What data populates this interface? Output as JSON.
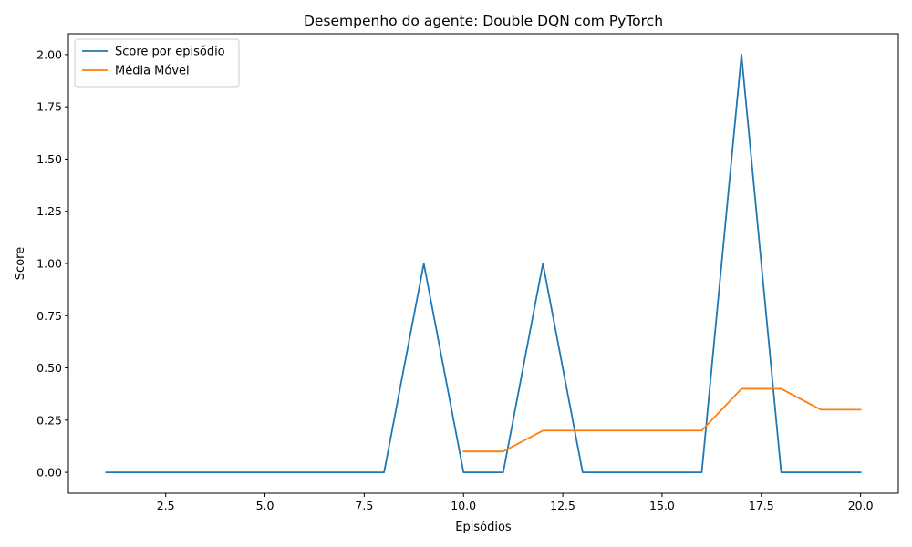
{
  "chart_data": {
    "type": "line",
    "title": "Desempenho do agente: Double DQN com PyTorch",
    "xlabel": "Episódios",
    "ylabel": "Score",
    "xlim": [
      0.05,
      20.95
    ],
    "ylim": [
      -0.1,
      2.1
    ],
    "xticks": [
      2.5,
      5.0,
      7.5,
      10.0,
      12.5,
      15.0,
      17.5,
      20.0
    ],
    "xtick_labels": [
      "2.5",
      "5.0",
      "7.5",
      "10.0",
      "12.5",
      "15.0",
      "17.5",
      "20.0"
    ],
    "yticks": [
      0.0,
      0.25,
      0.5,
      0.75,
      1.0,
      1.25,
      1.5,
      1.75,
      2.0
    ],
    "ytick_labels": [
      "0.00",
      "0.25",
      "0.50",
      "0.75",
      "1.00",
      "1.25",
      "1.50",
      "1.75",
      "2.00"
    ],
    "grid": false,
    "legend_position": "top-left",
    "series": [
      {
        "name": "Score por episódio",
        "color": "#1f77b4",
        "x": [
          1,
          2,
          3,
          4,
          5,
          6,
          7,
          8,
          9,
          10,
          11,
          12,
          13,
          14,
          15,
          16,
          17,
          18,
          19,
          20
        ],
        "y": [
          0,
          0,
          0,
          0,
          0,
          0,
          0,
          0,
          1,
          0,
          0,
          1,
          0,
          0,
          0,
          0,
          2,
          0,
          0,
          0
        ]
      },
      {
        "name": "Média Móvel",
        "color": "#ff7f0e",
        "x": [
          10,
          11,
          12,
          13,
          14,
          15,
          16,
          17,
          18,
          19,
          20
        ],
        "y": [
          0.1,
          0.1,
          0.2,
          0.2,
          0.2,
          0.2,
          0.2,
          0.4,
          0.4,
          0.3,
          0.3
        ]
      }
    ]
  }
}
